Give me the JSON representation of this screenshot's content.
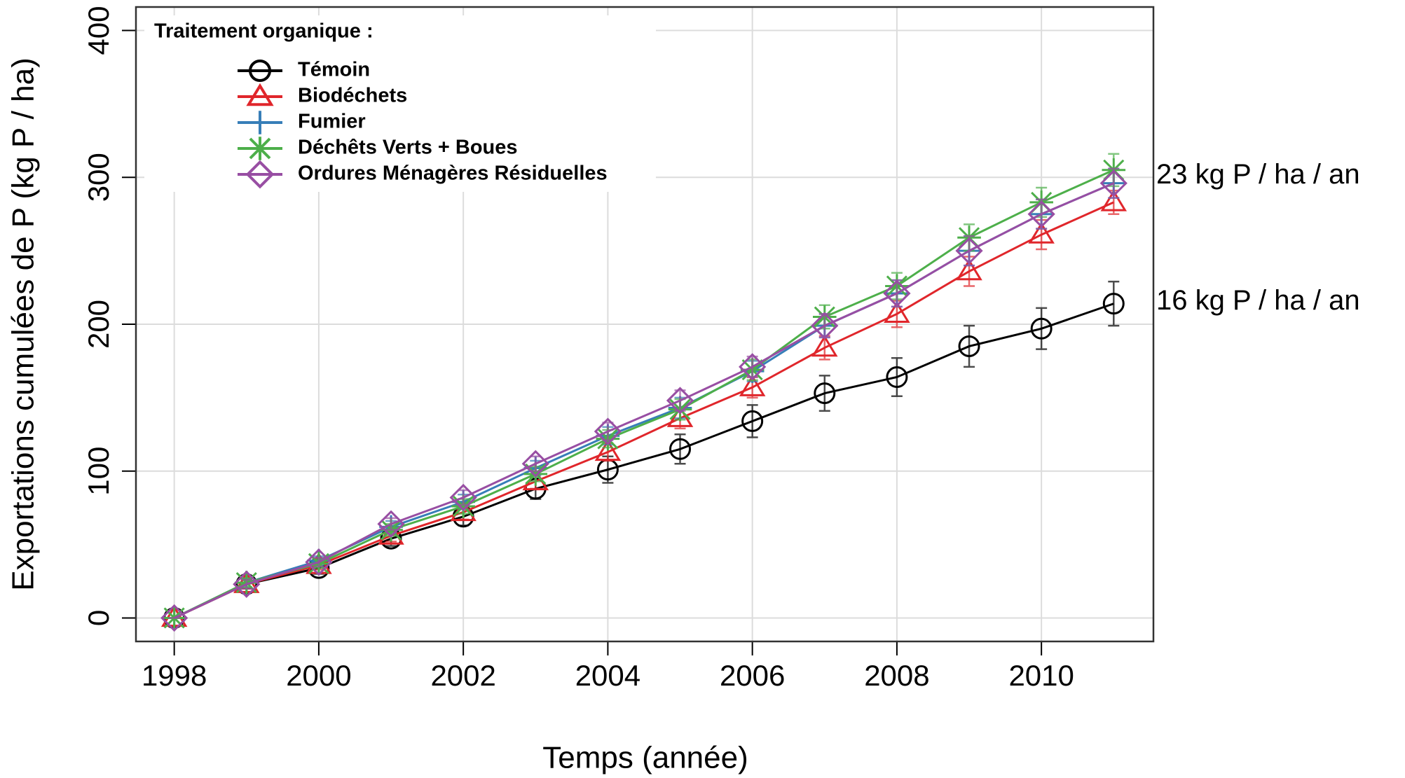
{
  "chart_data": {
    "type": "line",
    "legend_title": "Traitement organique :",
    "xlabel": "Temps (année)",
    "ylabel": "Exportations cumulées de P (kg P / ha)",
    "x": [
      1998,
      1999,
      2000,
      2001,
      2002,
      2003,
      2004,
      2005,
      2006,
      2007,
      2008,
      2009,
      2010,
      2011
    ],
    "series": [
      {
        "name": "Témoin",
        "color": "#000000",
        "marker": "circle",
        "values": [
          0,
          23,
          34,
          54,
          69,
          88,
          101,
          115,
          134,
          153,
          164,
          185,
          197,
          214
        ],
        "errors": [
          0,
          3,
          4,
          5,
          6,
          7,
          9,
          10,
          11,
          12,
          13,
          14,
          14,
          15
        ]
      },
      {
        "name": "Biodéchets",
        "color": "#e0262b",
        "marker": "triangle",
        "values": [
          0,
          23,
          36,
          56,
          72,
          93,
          113,
          136,
          157,
          184,
          207,
          236,
          261,
          283
        ],
        "errors": [
          0,
          3,
          3,
          4,
          5,
          5,
          6,
          7,
          7,
          8,
          9,
          10,
          10,
          8
        ]
      },
      {
        "name": "Fumier",
        "color": "#377eb8",
        "marker": "plus",
        "values": [
          0,
          24,
          39,
          62,
          79,
          102,
          124,
          143,
          168,
          199,
          221,
          250,
          275,
          296
        ],
        "errors": [
          0,
          3,
          3,
          4,
          5,
          5,
          6,
          7,
          7,
          8,
          9,
          10,
          10,
          10
        ]
      },
      {
        "name": "Déchêts Verts + Boues",
        "color": "#4daf4a",
        "marker": "asterisk",
        "values": [
          0,
          24,
          37,
          60,
          76,
          98,
          122,
          142,
          169,
          205,
          226,
          259,
          283,
          305
        ],
        "errors": [
          0,
          3,
          3,
          4,
          5,
          5,
          6,
          7,
          7,
          8,
          9,
          9,
          10,
          11
        ]
      },
      {
        "name": "Ordures Ménagères Résiduelles",
        "color": "#984ea3",
        "marker": "diamond",
        "values": [
          0,
          23,
          38,
          64,
          82,
          105,
          127,
          148,
          171,
          199,
          221,
          250,
          275,
          296
        ],
        "errors": [
          0,
          3,
          3,
          4,
          5,
          5,
          6,
          7,
          7,
          8,
          9,
          10,
          10,
          10
        ]
      }
    ],
    "xlim": [
      1997.47,
      2011.55
    ],
    "xticks": [
      1998,
      2000,
      2002,
      2004,
      2006,
      2008,
      2010
    ],
    "ylim": [
      -16,
      416
    ],
    "yticks": [
      0,
      100,
      200,
      300,
      400
    ],
    "grid": true,
    "legend_position": "upper left",
    "annotations": [
      {
        "text": "23 kg P / ha / an",
        "y": 300
      },
      {
        "text": "16 kg P / ha / an",
        "y": 214
      }
    ]
  }
}
